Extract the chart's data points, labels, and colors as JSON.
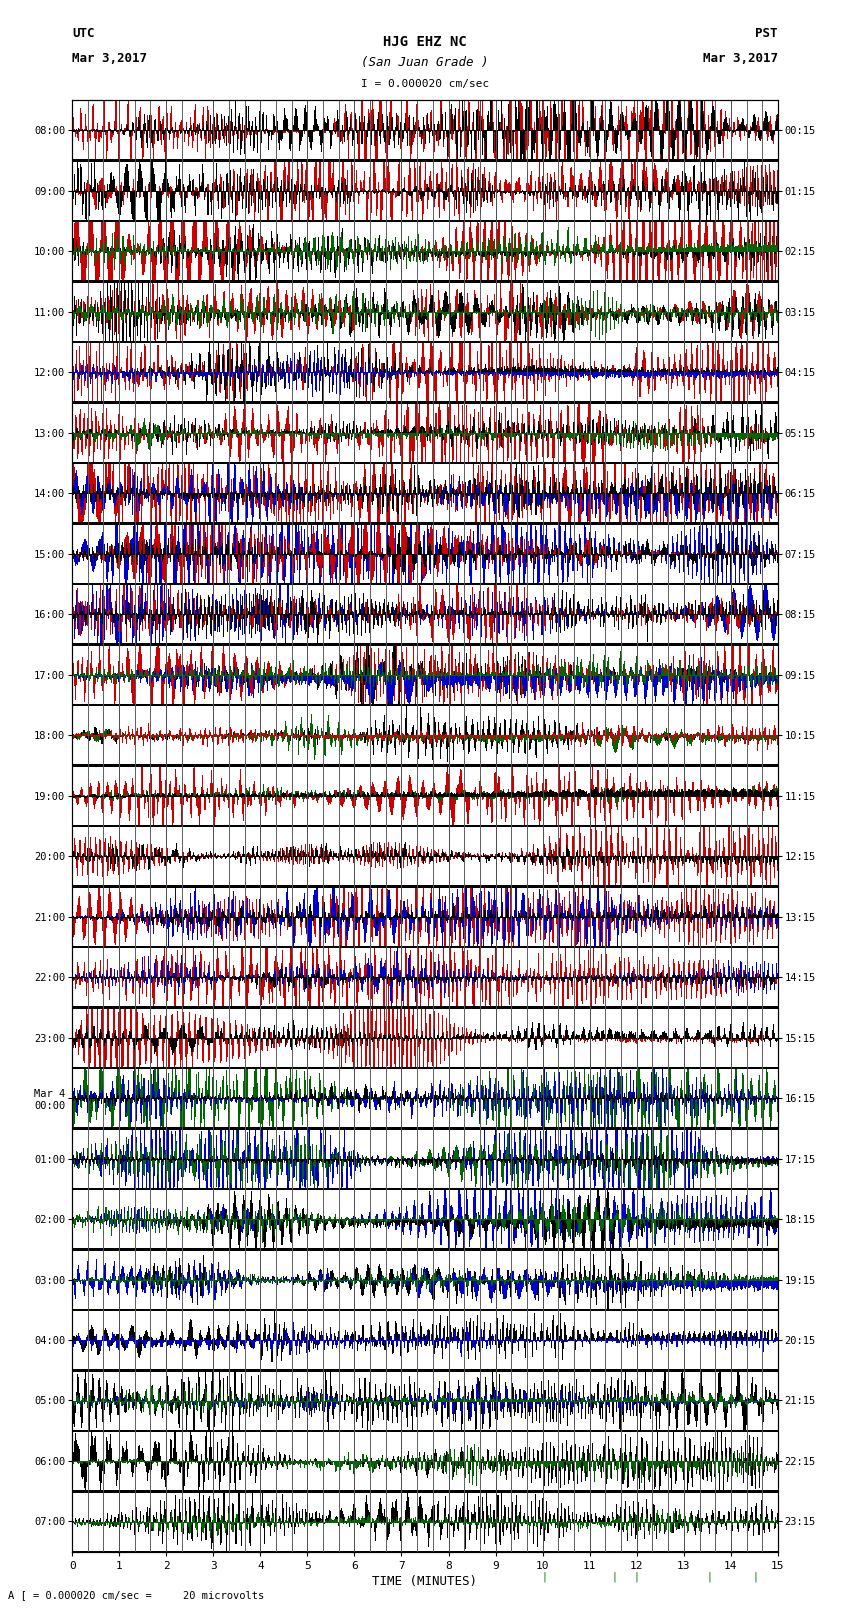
{
  "title_line1": "HJG EHZ NC",
  "title_line2": "(San Juan Grade )",
  "scale_text": "I = 0.000020 cm/sec",
  "utc_label": "UTC",
  "utc_date": "Mar 3,2017",
  "pst_label": "PST",
  "pst_date": "Mar 3,2017",
  "bottom_label": "TIME (MINUTES)",
  "bottom_scale": "A [ = 0.000020 cm/sec =     20 microvolts",
  "left_ticks": [
    "08:00",
    "09:00",
    "10:00",
    "11:00",
    "12:00",
    "13:00",
    "14:00",
    "15:00",
    "16:00",
    "17:00",
    "18:00",
    "19:00",
    "20:00",
    "21:00",
    "22:00",
    "23:00",
    "Mar 4\n00:00",
    "01:00",
    "02:00",
    "03:00",
    "04:00",
    "05:00",
    "06:00",
    "07:00"
  ],
  "right_ticks": [
    "00:15",
    "01:15",
    "02:15",
    "03:15",
    "04:15",
    "05:15",
    "06:15",
    "07:15",
    "08:15",
    "09:15",
    "10:15",
    "11:15",
    "12:15",
    "13:15",
    "14:15",
    "15:15",
    "16:15",
    "17:15",
    "18:15",
    "19:15",
    "20:15",
    "21:15",
    "22:15",
    "23:15"
  ],
  "x_ticks": [
    0,
    1,
    2,
    3,
    4,
    5,
    6,
    7,
    8,
    9,
    10,
    11,
    12,
    13,
    14,
    15
  ],
  "num_rows": 24,
  "num_cols": 720,
  "bg_color": "#ffffff",
  "colors": {
    "red": [
      204,
      0,
      0
    ],
    "blue": [
      0,
      0,
      204
    ],
    "green": [
      0,
      102,
      0
    ],
    "black": [
      0,
      0,
      0
    ],
    "white": [
      255,
      255,
      255
    ]
  },
  "figsize": [
    8.5,
    16.13
  ],
  "dpi": 100
}
